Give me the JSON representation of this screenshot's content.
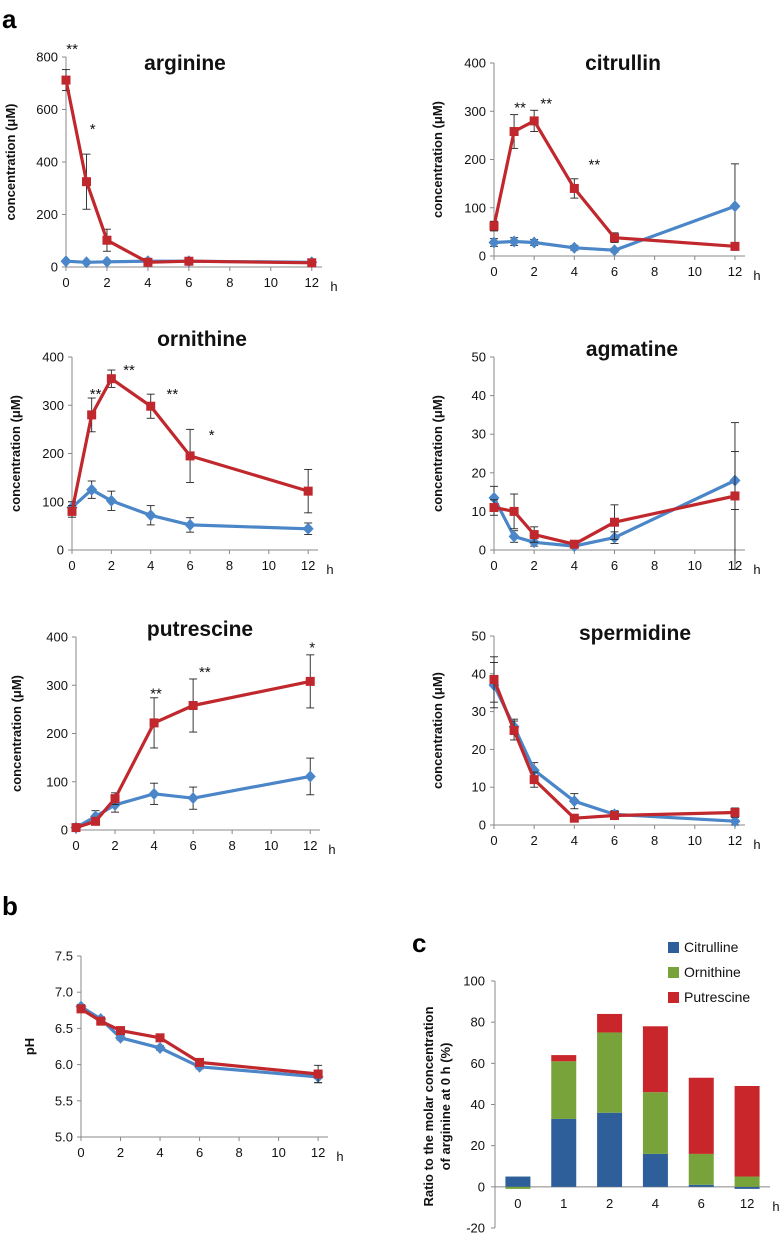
{
  "panels": {
    "a": "a",
    "b": "b",
    "c": "c"
  },
  "colors": {
    "line_a": "#4a86c8",
    "line_b": "#c0282d",
    "citrulline": "#2e5f9b",
    "ornithine": "#77a33a",
    "putrescine": "#c8262a",
    "axis": "#888888",
    "errbar": "#222222"
  },
  "chart_data": [
    {
      "id": "arginine",
      "type": "line",
      "title": "arginine",
      "ylabel": "concentration (μM)",
      "xunit": "h",
      "ylim": [
        0,
        800
      ],
      "yticks": [
        0,
        200,
        400,
        600,
        800
      ],
      "xlim": [
        0,
        12.5
      ],
      "xticks": [
        0,
        2,
        4,
        6,
        8,
        10,
        12
      ],
      "series": [
        {
          "name": "blue",
          "color": "#4a86c8",
          "marker": "diamond",
          "x": [
            0,
            1,
            2,
            4,
            6,
            12
          ],
          "y": [
            22,
            18,
            20,
            22,
            22,
            18
          ],
          "err": [
            5,
            4,
            4,
            4,
            4,
            4
          ]
        },
        {
          "name": "red",
          "color": "#c0282d",
          "marker": "square",
          "x": [
            0,
            1,
            2,
            4,
            6,
            12
          ],
          "y": [
            712,
            325,
            102,
            18,
            22,
            16
          ],
          "err": [
            40,
            105,
            42,
            5,
            8,
            5
          ]
        }
      ],
      "annotations": [
        {
          "x": 0.3,
          "y": 835,
          "text": "**"
        },
        {
          "x": 1.3,
          "y": 530,
          "text": "*"
        }
      ]
    },
    {
      "id": "citrullin",
      "type": "line",
      "title": "citrullin",
      "ylabel": "concentration (μM)",
      "xunit": "h",
      "ylim": [
        0,
        400
      ],
      "yticks": [
        0,
        100,
        200,
        300,
        400
      ],
      "xlim": [
        0,
        12.5
      ],
      "xticks": [
        0,
        2,
        4,
        6,
        8,
        10,
        12
      ],
      "series": [
        {
          "name": "blue",
          "color": "#4a86c8",
          "marker": "diamond",
          "x": [
            0,
            1,
            2,
            4,
            6,
            12
          ],
          "y": [
            28,
            30,
            28,
            17,
            12,
            103
          ],
          "err": [
            8,
            8,
            6,
            5,
            4,
            88
          ]
        },
        {
          "name": "red",
          "color": "#c0282d",
          "marker": "square",
          "x": [
            0,
            1,
            2,
            4,
            6,
            12
          ],
          "y": [
            62,
            258,
            280,
            140,
            38,
            20
          ],
          "err": [
            10,
            35,
            22,
            20,
            10,
            8
          ]
        }
      ],
      "annotations": [
        {
          "x": 1.3,
          "y": 310,
          "text": "**"
        },
        {
          "x": 2.6,
          "y": 318,
          "text": "**"
        },
        {
          "x": 5.0,
          "y": 192,
          "text": "**"
        }
      ]
    },
    {
      "id": "ornithine",
      "type": "line",
      "title": "ornithine",
      "ylabel": "concentration (μM)",
      "xunit": "h",
      "ylim": [
        0,
        400
      ],
      "yticks": [
        0,
        100,
        200,
        300,
        400
      ],
      "xlim": [
        0,
        12.5
      ],
      "xticks": [
        0,
        2,
        4,
        6,
        8,
        10,
        12
      ],
      "series": [
        {
          "name": "blue",
          "color": "#4a86c8",
          "marker": "diamond",
          "x": [
            0,
            1,
            2,
            4,
            6,
            12
          ],
          "y": [
            88,
            125,
            102,
            72,
            52,
            44
          ],
          "err": [
            12,
            18,
            20,
            20,
            15,
            12
          ]
        },
        {
          "name": "red",
          "color": "#c0282d",
          "marker": "square",
          "x": [
            0,
            1,
            2,
            4,
            6,
            12
          ],
          "y": [
            80,
            280,
            355,
            298,
            195,
            122
          ],
          "err": [
            12,
            35,
            18,
            25,
            55,
            45
          ]
        }
      ],
      "annotations": [
        {
          "x": 1.2,
          "y": 325,
          "text": "**"
        },
        {
          "x": 2.9,
          "y": 375,
          "text": "**"
        },
        {
          "x": 5.1,
          "y": 325,
          "text": "**"
        },
        {
          "x": 7.1,
          "y": 240,
          "text": "*"
        }
      ]
    },
    {
      "id": "agmatine",
      "type": "line",
      "title": "agmatine",
      "ylabel": "concentration (μM)",
      "xunit": "h",
      "ylim": [
        0,
        50
      ],
      "yticks": [
        0,
        10,
        20,
        30,
        40,
        50
      ],
      "xlim": [
        0,
        12.5
      ],
      "xticks": [
        0,
        2,
        4,
        6,
        8,
        10,
        12
      ],
      "series": [
        {
          "name": "blue",
          "color": "#4a86c8",
          "marker": "diamond",
          "x": [
            0,
            1,
            2,
            4,
            6,
            12
          ],
          "y": [
            13.5,
            3.5,
            2,
            1,
            3.2,
            18
          ],
          "err": [
            3,
            1.5,
            1,
            0.5,
            1.5,
            7.5
          ]
        },
        {
          "name": "red",
          "color": "#c0282d",
          "marker": "square",
          "x": [
            0,
            1,
            2,
            4,
            6,
            12
          ],
          "y": [
            11,
            10,
            4,
            1.5,
            7.2,
            14
          ],
          "err": [
            2,
            4.5,
            2,
            0.5,
            4.5,
            19
          ]
        }
      ],
      "annotations": []
    },
    {
      "id": "putrescine",
      "type": "line",
      "title": "putrescine",
      "ylabel": "concentration (μM)",
      "xunit": "h",
      "ylim": [
        0,
        400
      ],
      "yticks": [
        0,
        100,
        200,
        300,
        400
      ],
      "xlim": [
        0,
        12.5
      ],
      "xticks": [
        0,
        2,
        4,
        6,
        8,
        10,
        12
      ],
      "series": [
        {
          "name": "blue",
          "color": "#4a86c8",
          "marker": "diamond",
          "x": [
            0,
            1,
            2,
            4,
            6,
            12
          ],
          "y": [
            5,
            28,
            52,
            75,
            66,
            111
          ],
          "err": [
            3,
            12,
            15,
            22,
            23,
            38
          ]
        },
        {
          "name": "red",
          "color": "#c0282d",
          "marker": "square",
          "x": [
            0,
            1,
            2,
            4,
            6,
            12
          ],
          "y": [
            5,
            18,
            65,
            222,
            258,
            308
          ],
          "err": [
            3,
            6,
            12,
            52,
            55,
            55
          ]
        }
      ],
      "annotations": [
        {
          "x": 4.1,
          "y": 285,
          "text": "**"
        },
        {
          "x": 6.6,
          "y": 330,
          "text": "**"
        },
        {
          "x": 12.1,
          "y": 380,
          "text": "*"
        }
      ]
    },
    {
      "id": "spermidine",
      "type": "line",
      "title": "spermidine",
      "ylabel": "concentration (μM)",
      "xunit": "h",
      "ylim": [
        0,
        50
      ],
      "yticks": [
        0,
        10,
        20,
        30,
        40,
        50
      ],
      "xlim": [
        0,
        12.5
      ],
      "xticks": [
        0,
        2,
        4,
        6,
        8,
        10,
        12
      ],
      "series": [
        {
          "name": "blue",
          "color": "#4a86c8",
          "marker": "diamond",
          "x": [
            0,
            1,
            2,
            4,
            6,
            12
          ],
          "y": [
            37,
            26,
            14.5,
            6.3,
            2.8,
            1
          ],
          "err": [
            6,
            2,
            2,
            2,
            1,
            1
          ]
        },
        {
          "name": "red",
          "color": "#c0282d",
          "marker": "square",
          "x": [
            0,
            1,
            2,
            4,
            6,
            12
          ],
          "y": [
            38.5,
            25,
            12,
            1.8,
            2.5,
            3.3
          ],
          "err": [
            6,
            2.5,
            2,
            0.5,
            1,
            1.2
          ]
        }
      ],
      "annotations": []
    },
    {
      "id": "ph",
      "type": "line",
      "title": "",
      "ylabel": "pH",
      "xunit": "h",
      "ylim": [
        5.0,
        7.5
      ],
      "yticks": [
        "5.0",
        "5.5",
        "6.0",
        "6.5",
        "7.0",
        "7.5"
      ],
      "xlim": [
        0,
        12.5
      ],
      "xticks": [
        0,
        2,
        4,
        6,
        8,
        10,
        12
      ],
      "series": [
        {
          "name": "blue",
          "color": "#4a86c8",
          "marker": "diamond",
          "x": [
            0,
            1,
            2,
            4,
            6,
            12
          ],
          "y": [
            6.8,
            6.63,
            6.37,
            6.23,
            5.97,
            5.83
          ],
          "err": [
            0.03,
            0.03,
            0.03,
            0.03,
            0.03,
            0.08
          ]
        },
        {
          "name": "red",
          "color": "#c0282d",
          "marker": "square",
          "x": [
            0,
            1,
            2,
            4,
            6,
            12
          ],
          "y": [
            6.77,
            6.6,
            6.47,
            6.37,
            6.03,
            5.87
          ],
          "err": [
            0.03,
            0.03,
            0.05,
            0.03,
            0.03,
            0.12
          ]
        }
      ],
      "annotations": []
    },
    {
      "id": "ratio",
      "type": "bar",
      "stacked": true,
      "ylabel": "Ratio to the molar concentration of arginine at 0 h (%)",
      "ylabel_lines": [
        "Ratio to the molar concentration",
        "of arginine at 0 h (%)"
      ],
      "xunit": "h",
      "categories": [
        "0",
        "1",
        "2",
        "4",
        "6",
        "12"
      ],
      "ylim": [
        -20,
        100
      ],
      "yticks": [
        -20,
        0,
        20,
        40,
        60,
        80,
        100
      ],
      "series": [
        {
          "name": "Citrulline",
          "color": "#2e5f9b",
          "values": [
            5,
            33,
            36,
            16,
            1,
            -1
          ]
        },
        {
          "name": "Ornithine",
          "color": "#77a33a",
          "values": [
            -1,
            28,
            39,
            30,
            15,
            5
          ]
        },
        {
          "name": "Putrescine",
          "color": "#c8262a",
          "values": [
            0,
            3,
            9,
            32,
            37,
            44
          ]
        }
      ],
      "legend": "top-right"
    }
  ]
}
